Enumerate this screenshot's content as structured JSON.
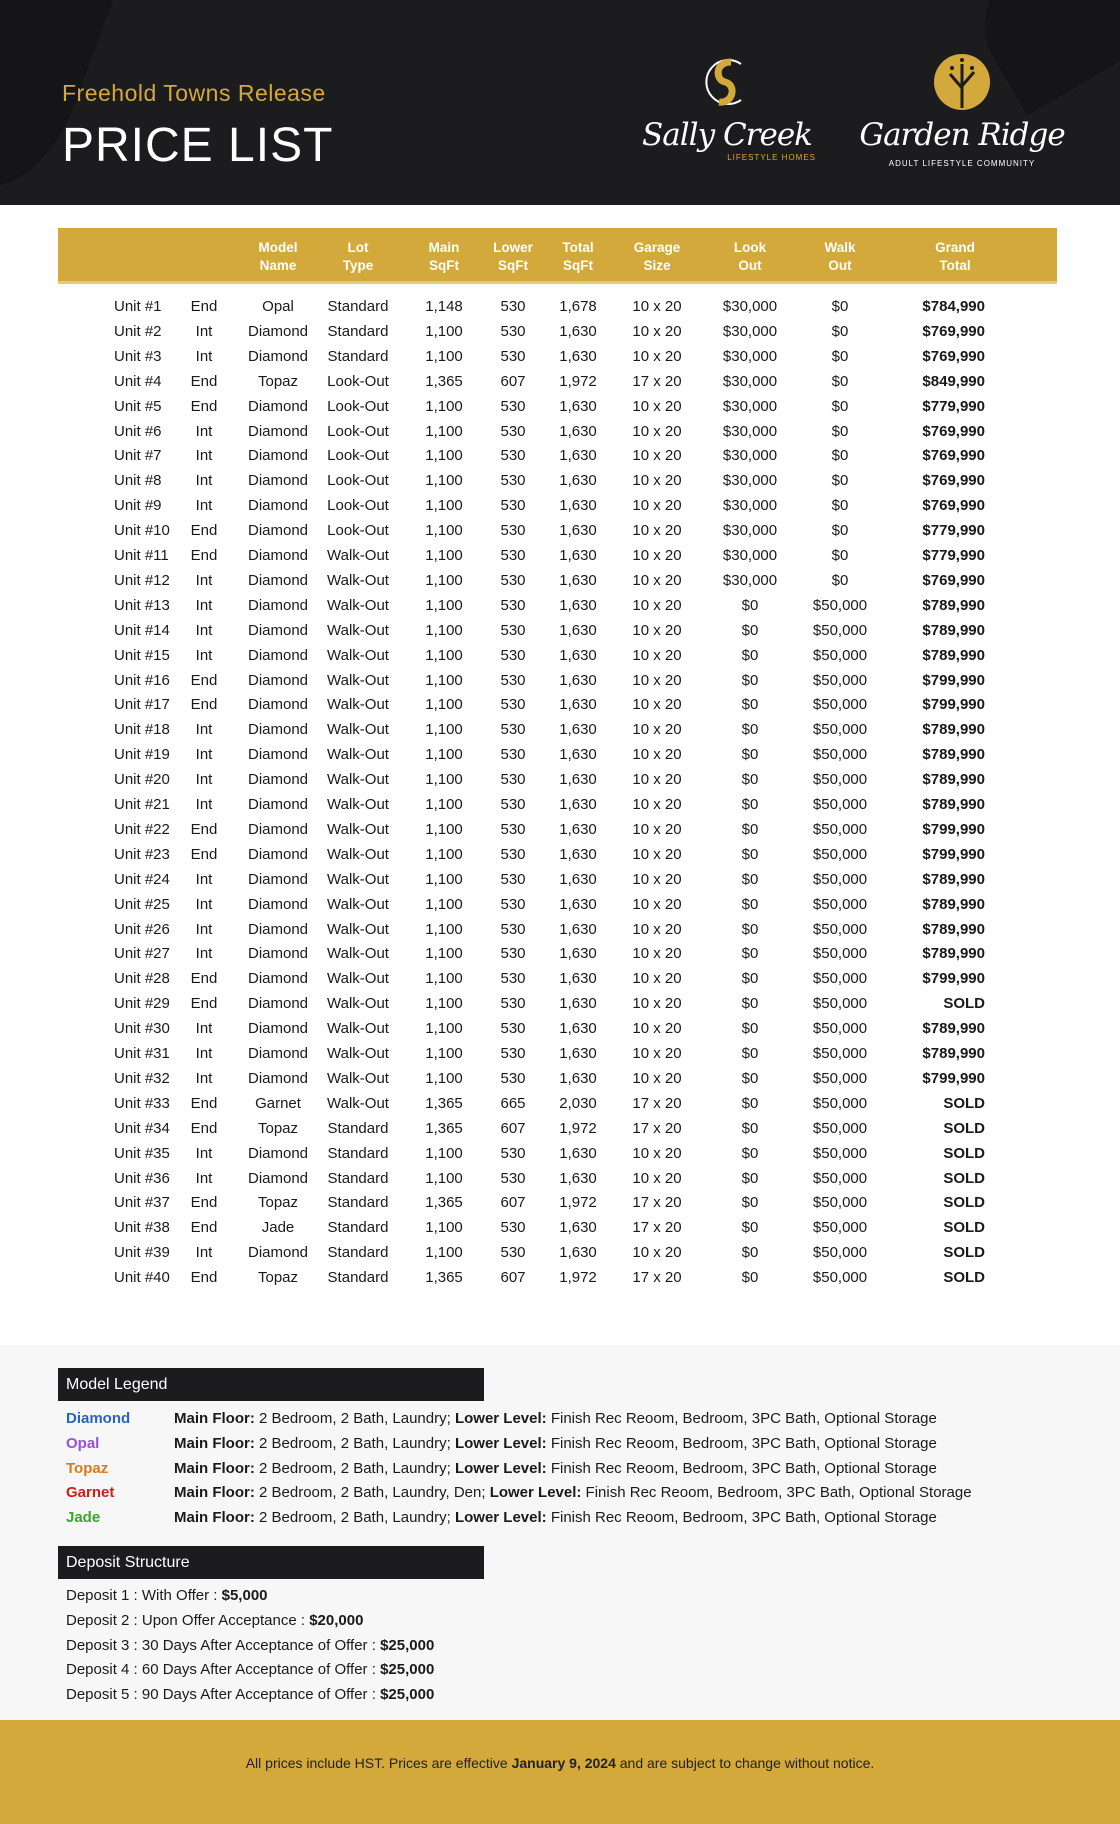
{
  "header": {
    "subtitle": "Freehold Towns Release",
    "title": "PRICE LIST",
    "logo1": {
      "name": "Sally Creek",
      "tagline": "LIFESTYLE HOMES",
      "monogram": "SC"
    },
    "logo2": {
      "name": "Garden Ridge",
      "tagline": "ADULT LIFESTYLE COMMUNITY"
    }
  },
  "colors": {
    "gold": "#d4a93c",
    "dark": "#1c1c1f"
  },
  "table": {
    "columns": [
      "",
      "",
      "Model\nName",
      "Lot\nType",
      "Main\nSqFt",
      "Lower\nSqFt",
      "Total\nSqFt",
      "Garage\nSize",
      "Look\nOut",
      "Walk\nOut",
      "Grand\nTotal"
    ],
    "rows": [
      [
        "Unit #1",
        "End",
        "Opal",
        "Standard",
        "1,148",
        "530",
        "1,678",
        "10 x 20",
        "$30,000",
        "$0",
        "$784,990"
      ],
      [
        "Unit #2",
        "Int",
        "Diamond",
        "Standard",
        "1,100",
        "530",
        "1,630",
        "10 x 20",
        "$30,000",
        "$0",
        "$769,990"
      ],
      [
        "Unit #3",
        "Int",
        "Diamond",
        "Standard",
        "1,100",
        "530",
        "1,630",
        "10 x 20",
        "$30,000",
        "$0",
        "$769,990"
      ],
      [
        "Unit #4",
        "End",
        "Topaz",
        "Look-Out",
        "1,365",
        "607",
        "1,972",
        "17 x 20",
        "$30,000",
        "$0",
        "$849,990"
      ],
      [
        "Unit #5",
        "End",
        "Diamond",
        "Look-Out",
        "1,100",
        "530",
        "1,630",
        "10 x 20",
        "$30,000",
        "$0",
        "$779,990"
      ],
      [
        "Unit #6",
        "Int",
        "Diamond",
        "Look-Out",
        "1,100",
        "530",
        "1,630",
        "10 x 20",
        "$30,000",
        "$0",
        "$769,990"
      ],
      [
        "Unit #7",
        "Int",
        "Diamond",
        "Look-Out",
        "1,100",
        "530",
        "1,630",
        "10 x 20",
        "$30,000",
        "$0",
        "$769,990"
      ],
      [
        "Unit #8",
        "Int",
        "Diamond",
        "Look-Out",
        "1,100",
        "530",
        "1,630",
        "10 x 20",
        "$30,000",
        "$0",
        "$769,990"
      ],
      [
        "Unit #9",
        "Int",
        "Diamond",
        "Look-Out",
        "1,100",
        "530",
        "1,630",
        "10 x 20",
        "$30,000",
        "$0",
        "$769,990"
      ],
      [
        "Unit #10",
        "End",
        "Diamond",
        "Look-Out",
        "1,100",
        "530",
        "1,630",
        "10 x 20",
        "$30,000",
        "$0",
        "$779,990"
      ],
      [
        "Unit #11",
        "End",
        "Diamond",
        "Walk-Out",
        "1,100",
        "530",
        "1,630",
        "10 x 20",
        "$30,000",
        "$0",
        "$779,990"
      ],
      [
        "Unit #12",
        "Int",
        "Diamond",
        "Walk-Out",
        "1,100",
        "530",
        "1,630",
        "10 x 20",
        "$30,000",
        "$0",
        "$769,990"
      ],
      [
        "Unit #13",
        "Int",
        "Diamond",
        "Walk-Out",
        "1,100",
        "530",
        "1,630",
        "10 x 20",
        "$0",
        "$50,000",
        "$789,990"
      ],
      [
        "Unit #14",
        "Int",
        "Diamond",
        "Walk-Out",
        "1,100",
        "530",
        "1,630",
        "10 x 20",
        "$0",
        "$50,000",
        "$789,990"
      ],
      [
        "Unit #15",
        "Int",
        "Diamond",
        "Walk-Out",
        "1,100",
        "530",
        "1,630",
        "10 x 20",
        "$0",
        "$50,000",
        "$789,990"
      ],
      [
        "Unit #16",
        "End",
        "Diamond",
        "Walk-Out",
        "1,100",
        "530",
        "1,630",
        "10 x 20",
        "$0",
        "$50,000",
        "$799,990"
      ],
      [
        "Unit #17",
        "End",
        "Diamond",
        "Walk-Out",
        "1,100",
        "530",
        "1,630",
        "10 x 20",
        "$0",
        "$50,000",
        "$799,990"
      ],
      [
        "Unit #18",
        "Int",
        "Diamond",
        "Walk-Out",
        "1,100",
        "530",
        "1,630",
        "10 x 20",
        "$0",
        "$50,000",
        "$789,990"
      ],
      [
        "Unit #19",
        "Int",
        "Diamond",
        "Walk-Out",
        "1,100",
        "530",
        "1,630",
        "10 x 20",
        "$0",
        "$50,000",
        "$789,990"
      ],
      [
        "Unit #20",
        "Int",
        "Diamond",
        "Walk-Out",
        "1,100",
        "530",
        "1,630",
        "10 x 20",
        "$0",
        "$50,000",
        "$789,990"
      ],
      [
        "Unit #21",
        "Int",
        "Diamond",
        "Walk-Out",
        "1,100",
        "530",
        "1,630",
        "10 x 20",
        "$0",
        "$50,000",
        "$789,990"
      ],
      [
        "Unit #22",
        "End",
        "Diamond",
        "Walk-Out",
        "1,100",
        "530",
        "1,630",
        "10 x 20",
        "$0",
        "$50,000",
        "$799,990"
      ],
      [
        "Unit #23",
        "End",
        "Diamond",
        "Walk-Out",
        "1,100",
        "530",
        "1,630",
        "10 x 20",
        "$0",
        "$50,000",
        "$799,990"
      ],
      [
        "Unit #24",
        "Int",
        "Diamond",
        "Walk-Out",
        "1,100",
        "530",
        "1,630",
        "10 x 20",
        "$0",
        "$50,000",
        "$789,990"
      ],
      [
        "Unit #25",
        "Int",
        "Diamond",
        "Walk-Out",
        "1,100",
        "530",
        "1,630",
        "10 x 20",
        "$0",
        "$50,000",
        "$789,990"
      ],
      [
        "Unit #26",
        "Int",
        "Diamond",
        "Walk-Out",
        "1,100",
        "530",
        "1,630",
        "10 x 20",
        "$0",
        "$50,000",
        "$789,990"
      ],
      [
        "Unit #27",
        "Int",
        "Diamond",
        "Walk-Out",
        "1,100",
        "530",
        "1,630",
        "10 x 20",
        "$0",
        "$50,000",
        "$789,990"
      ],
      [
        "Unit #28",
        "End",
        "Diamond",
        "Walk-Out",
        "1,100",
        "530",
        "1,630",
        "10 x 20",
        "$0",
        "$50,000",
        "$799,990"
      ],
      [
        "Unit #29",
        "End",
        "Diamond",
        "Walk-Out",
        "1,100",
        "530",
        "1,630",
        "10 x 20",
        "$0",
        "$50,000",
        "SOLD"
      ],
      [
        "Unit #30",
        "Int",
        "Diamond",
        "Walk-Out",
        "1,100",
        "530",
        "1,630",
        "10 x 20",
        "$0",
        "$50,000",
        "$789,990"
      ],
      [
        "Unit #31",
        "Int",
        "Diamond",
        "Walk-Out",
        "1,100",
        "530",
        "1,630",
        "10 x 20",
        "$0",
        "$50,000",
        "$789,990"
      ],
      [
        "Unit #32",
        "Int",
        "Diamond",
        "Walk-Out",
        "1,100",
        "530",
        "1,630",
        "10 x 20",
        "$0",
        "$50,000",
        "$799,990"
      ],
      [
        "Unit #33",
        "End",
        "Garnet",
        "Walk-Out",
        "1,365",
        "665",
        "2,030",
        "17 x 20",
        "$0",
        "$50,000",
        "SOLD"
      ],
      [
        "Unit #34",
        "End",
        "Topaz",
        "Standard",
        "1,365",
        "607",
        "1,972",
        "17 x 20",
        "$0",
        "$50,000",
        "SOLD"
      ],
      [
        "Unit #35",
        "Int",
        "Diamond",
        "Standard",
        "1,100",
        "530",
        "1,630",
        "10 x 20",
        "$0",
        "$50,000",
        "SOLD"
      ],
      [
        "Unit #36",
        "Int",
        "Diamond",
        "Standard",
        "1,100",
        "530",
        "1,630",
        "10 x 20",
        "$0",
        "$50,000",
        "SOLD"
      ],
      [
        "Unit #37",
        "End",
        "Topaz",
        "Standard",
        "1,365",
        "607",
        "1,972",
        "17 x 20",
        "$0",
        "$50,000",
        "SOLD"
      ],
      [
        "Unit #38",
        "End",
        "Jade",
        "Standard",
        "1,100",
        "530",
        "1,630",
        "17 x 20",
        "$0",
        "$50,000",
        "SOLD"
      ],
      [
        "Unit #39",
        "Int",
        "Diamond",
        "Standard",
        "1,100",
        "530",
        "1,630",
        "10 x 20",
        "$0",
        "$50,000",
        "SOLD"
      ],
      [
        "Unit #40",
        "End",
        "Topaz",
        "Standard",
        "1,365",
        "607",
        "1,972",
        "17 x 20",
        "$0",
        "$50,000",
        "SOLD"
      ]
    ]
  },
  "legend": {
    "title": "Model Legend",
    "items": [
      {
        "name": "Diamond",
        "color": "#2a62c4",
        "main_label": "Main Floor:",
        "main": " 2 Bedroom, 2 Bath, Laundry; ",
        "lower_label": "Lower Level:",
        "lower": " Finish Rec Reoom, Bedroom, 3PC Bath, Optional Storage"
      },
      {
        "name": "Opal",
        "color": "#9a4fd8",
        "main_label": "Main Floor:",
        "main": " 2 Bedroom, 2 Bath, Laundry; ",
        "lower_label": "Lower Level:",
        "lower": " Finish Rec Reoom, Bedroom, 3PC Bath, Optional Storage"
      },
      {
        "name": "Topaz",
        "color": "#d77a1c",
        "main_label": "Main Floor:",
        "main": " 2 Bedroom, 2 Bath, Laundry; ",
        "lower_label": "Lower Level:",
        "lower": " Finish Rec Reoom, Bedroom, 3PC Bath, Optional Storage"
      },
      {
        "name": "Garnet",
        "color": "#c8201e",
        "main_label": "Main Floor:",
        "main": " 2 Bedroom, 2 Bath, Laundry, Den; ",
        "lower_label": "Lower Level:",
        "lower": " Finish Rec Reoom, Bedroom, 3PC Bath, Optional Storage"
      },
      {
        "name": "Jade",
        "color": "#3aa626",
        "main_label": "Main Floor:",
        "main": " 2 Bedroom, 2 Bath, Laundry; ",
        "lower_label": "Lower Level:",
        "lower": " Finish Rec Reoom, Bedroom, 3PC Bath, Optional Storage"
      }
    ]
  },
  "deposits": {
    "title": "Deposit Structure",
    "items": [
      {
        "label": "Deposit 1 : With Offer : ",
        "amount": "$5,000"
      },
      {
        "label": "Deposit 2 : Upon Offer Acceptance : ",
        "amount": "$20,000"
      },
      {
        "label": "Deposit 3 : 30 Days After Acceptance of Offer : ",
        "amount": "$25,000"
      },
      {
        "label": "Deposit 4 : 60 Days After Acceptance of Offer : ",
        "amount": "$25,000"
      },
      {
        "label": "Deposit 5 : 90 Days After Acceptance of Offer : ",
        "amount": "$25,000"
      }
    ]
  },
  "footer": {
    "pre": "All prices include HST. Prices are effective ",
    "date": "January 9, 2024",
    "post": " and are subject to change without notice."
  }
}
